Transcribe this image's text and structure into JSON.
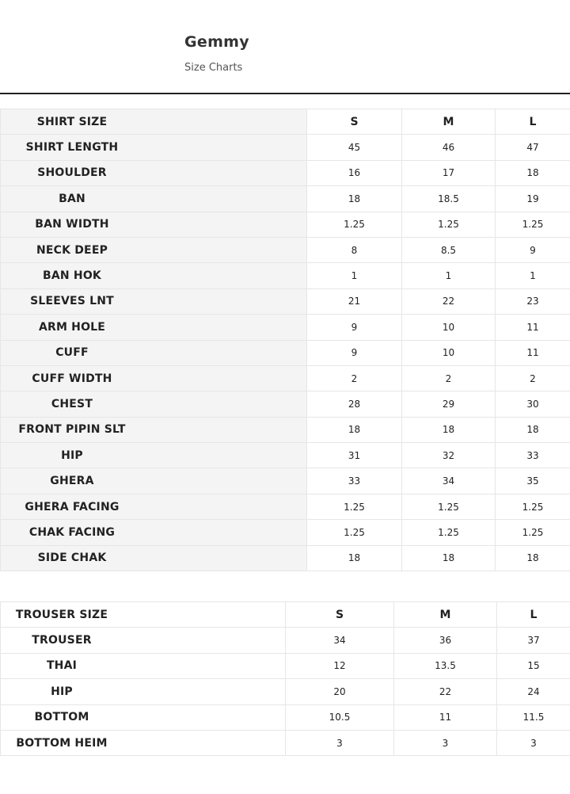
{
  "header": {
    "title": "Gemmy",
    "subtitle": "Size Charts"
  },
  "shirt_table": {
    "columns": [
      "SHIRT SIZE",
      "S",
      "M",
      "L"
    ],
    "rows": [
      [
        "SHIRT LENGTH",
        "45",
        "46",
        "47"
      ],
      [
        "SHOULDER",
        "16",
        "17",
        "18"
      ],
      [
        "BAN",
        "18",
        "18.5",
        "19"
      ],
      [
        "BAN WIDTH",
        "1.25",
        "1.25",
        "1.25"
      ],
      [
        "NECK DEEP",
        "8",
        "8.5",
        "9"
      ],
      [
        "BAN HOK",
        "1",
        "1",
        "1"
      ],
      [
        "SLEEVES LNT",
        "21",
        "22",
        "23"
      ],
      [
        "ARM HOLE",
        "9",
        "10",
        "11"
      ],
      [
        "CUFF",
        "9",
        "10",
        "11"
      ],
      [
        "CUFF WIDTH",
        "2",
        "2",
        "2"
      ],
      [
        "CHEST",
        "28",
        "29",
        "30"
      ],
      [
        "FRONT PIPIN SLT",
        "18",
        "18",
        "18"
      ],
      [
        "HIP",
        "31",
        "32",
        "33"
      ],
      [
        "GHERA",
        "33",
        "34",
        "35"
      ],
      [
        "GHERA FACING",
        "1.25",
        "1.25",
        "1.25"
      ],
      [
        "CHAK FACING",
        "1.25",
        "1.25",
        "1.25"
      ],
      [
        "SIDE CHAK",
        "18",
        "18",
        "18"
      ]
    ]
  },
  "trouser_table": {
    "columns": [
      "TROUSER SIZE",
      "S",
      "M",
      "L"
    ],
    "rows": [
      [
        "TROUSER",
        "34",
        "36",
        "37"
      ],
      [
        "THAI",
        "12",
        "13.5",
        "15"
      ],
      [
        "HIP",
        "20",
        "22",
        "24"
      ],
      [
        "BOTTOM",
        "10.5",
        "11",
        "11.5"
      ],
      [
        "BOTTOM HEIM",
        "3",
        "3",
        "3"
      ]
    ]
  }
}
